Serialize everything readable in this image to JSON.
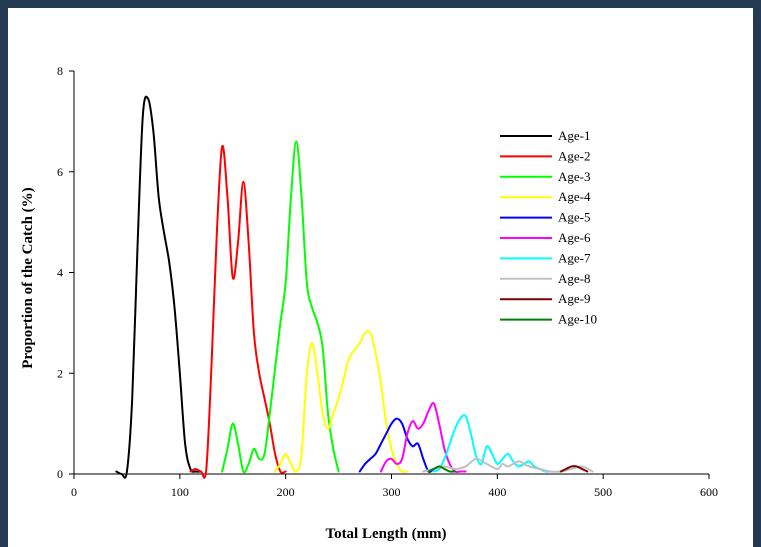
{
  "chart_data": {
    "type": "line",
    "title": "",
    "xlabel": "Total Length (mm)",
    "ylabel": "Proportion of the Catch (%)",
    "xlim": [
      0,
      600
    ],
    "ylim": [
      0,
      8
    ],
    "xticks": [
      0,
      100,
      200,
      300,
      400,
      500,
      600
    ],
    "yticks": [
      0,
      2,
      4,
      6,
      8
    ],
    "grid": false,
    "legend_position": "right",
    "series": [
      {
        "name": "Age-1",
        "color": "#000000",
        "points": [
          [
            40,
            0.05
          ],
          [
            45,
            0
          ],
          [
            50,
            0.05
          ],
          [
            55,
            1.5
          ],
          [
            60,
            4.5
          ],
          [
            65,
            7.1
          ],
          [
            70,
            7.45
          ],
          [
            75,
            6.8
          ],
          [
            80,
            5.5
          ],
          [
            85,
            4.8
          ],
          [
            90,
            4.2
          ],
          [
            95,
            3.3
          ],
          [
            100,
            2.0
          ],
          [
            105,
            0.6
          ],
          [
            110,
            0.1
          ],
          [
            115,
            0.05
          ],
          [
            120,
            0.05
          ]
        ]
      },
      {
        "name": "Age-2",
        "color": "#ff0000",
        "points": [
          [
            110,
            0.05
          ],
          [
            115,
            0.1
          ],
          [
            120,
            0.05
          ],
          [
            125,
            0.1
          ],
          [
            130,
            2.2
          ],
          [
            135,
            4.8
          ],
          [
            140,
            6.5
          ],
          [
            145,
            5.5
          ],
          [
            150,
            3.9
          ],
          [
            155,
            4.6
          ],
          [
            160,
            5.8
          ],
          [
            165,
            4.6
          ],
          [
            170,
            2.8
          ],
          [
            175,
            2.0
          ],
          [
            180,
            1.5
          ],
          [
            185,
            1.0
          ],
          [
            190,
            0.4
          ],
          [
            195,
            0.05
          ],
          [
            200,
            0.05
          ]
        ]
      },
      {
        "name": "Age-3",
        "color": "#00ff00",
        "points": [
          [
            140,
            0.05
          ],
          [
            145,
            0.5
          ],
          [
            150,
            1.0
          ],
          [
            155,
            0.6
          ],
          [
            160,
            0.05
          ],
          [
            165,
            0.2
          ],
          [
            170,
            0.5
          ],
          [
            175,
            0.3
          ],
          [
            180,
            0.4
          ],
          [
            185,
            1.2
          ],
          [
            190,
            2.1
          ],
          [
            195,
            3.0
          ],
          [
            200,
            3.8
          ],
          [
            205,
            5.5
          ],
          [
            210,
            6.6
          ],
          [
            215,
            5.5
          ],
          [
            220,
            3.8
          ],
          [
            225,
            3.3
          ],
          [
            230,
            3.0
          ],
          [
            235,
            2.5
          ],
          [
            240,
            1.2
          ],
          [
            245,
            0.5
          ],
          [
            250,
            0.05
          ]
        ]
      },
      {
        "name": "Age-4",
        "color": "#ffff00",
        "points": [
          [
            190,
            0.05
          ],
          [
            195,
            0.2
          ],
          [
            200,
            0.4
          ],
          [
            205,
            0.2
          ],
          [
            210,
            0.05
          ],
          [
            215,
            0.4
          ],
          [
            220,
            2.0
          ],
          [
            225,
            2.6
          ],
          [
            230,
            2.0
          ],
          [
            235,
            1.2
          ],
          [
            240,
            0.9
          ],
          [
            245,
            1.2
          ],
          [
            250,
            1.5
          ],
          [
            255,
            1.9
          ],
          [
            260,
            2.3
          ],
          [
            270,
            2.6
          ],
          [
            275,
            2.8
          ],
          [
            280,
            2.8
          ],
          [
            285,
            2.4
          ],
          [
            290,
            1.8
          ],
          [
            295,
            1.0
          ],
          [
            300,
            0.5
          ],
          [
            305,
            0.2
          ],
          [
            310,
            0.05
          ],
          [
            315,
            0.05
          ]
        ]
      },
      {
        "name": "Age-5",
        "color": "#0000ff",
        "points": [
          [
            270,
            0.05
          ],
          [
            275,
            0.2
          ],
          [
            280,
            0.3
          ],
          [
            285,
            0.4
          ],
          [
            290,
            0.6
          ],
          [
            295,
            0.8
          ],
          [
            300,
            1.0
          ],
          [
            305,
            1.1
          ],
          [
            310,
            1.0
          ],
          [
            315,
            0.7
          ],
          [
            320,
            0.55
          ],
          [
            325,
            0.6
          ],
          [
            330,
            0.3
          ],
          [
            335,
            0.05
          ],
          [
            340,
            0.1
          ],
          [
            345,
            0.15
          ]
        ]
      },
      {
        "name": "Age-6",
        "color": "#ff00ff",
        "points": [
          [
            290,
            0.05
          ],
          [
            295,
            0.25
          ],
          [
            300,
            0.3
          ],
          [
            305,
            0.2
          ],
          [
            310,
            0.3
          ],
          [
            315,
            0.8
          ],
          [
            320,
            1.05
          ],
          [
            325,
            0.9
          ],
          [
            330,
            1.0
          ],
          [
            335,
            1.25
          ],
          [
            340,
            1.4
          ],
          [
            345,
            1.0
          ],
          [
            350,
            0.5
          ],
          [
            355,
            0.2
          ],
          [
            360,
            0.05
          ],
          [
            365,
            0.05
          ],
          [
            370,
            0.05
          ]
        ]
      },
      {
        "name": "Age-7",
        "color": "#00ffff",
        "points": [
          [
            340,
            0.05
          ],
          [
            345,
            0.1
          ],
          [
            350,
            0.3
          ],
          [
            355,
            0.6
          ],
          [
            360,
            0.9
          ],
          [
            365,
            1.1
          ],
          [
            370,
            1.15
          ],
          [
            375,
            0.8
          ],
          [
            380,
            0.35
          ],
          [
            385,
            0.2
          ],
          [
            390,
            0.55
          ],
          [
            395,
            0.4
          ],
          [
            400,
            0.2
          ],
          [
            405,
            0.3
          ],
          [
            410,
            0.4
          ],
          [
            415,
            0.25
          ],
          [
            420,
            0.15
          ],
          [
            425,
            0.2
          ],
          [
            430,
            0.25
          ],
          [
            435,
            0.15
          ],
          [
            440,
            0.1
          ],
          [
            445,
            0.05
          ],
          [
            450,
            0.05
          ]
        ]
      },
      {
        "name": "Age-8",
        "color": "#c0c0c0",
        "points": [
          [
            330,
            0.05
          ],
          [
            340,
            0.1
          ],
          [
            350,
            0.15
          ],
          [
            360,
            0.1
          ],
          [
            370,
            0.15
          ],
          [
            380,
            0.3
          ],
          [
            390,
            0.2
          ],
          [
            400,
            0.1
          ],
          [
            405,
            0.2
          ],
          [
            410,
            0.15
          ],
          [
            420,
            0.25
          ],
          [
            425,
            0.2
          ],
          [
            430,
            0.15
          ],
          [
            440,
            0.1
          ],
          [
            450,
            0.05
          ],
          [
            460,
            0.05
          ],
          [
            470,
            0.1
          ],
          [
            480,
            0.15
          ],
          [
            490,
            0.05
          ]
        ]
      },
      {
        "name": "Age-9",
        "color": "#800000",
        "points": [
          [
            460,
            0.05
          ],
          [
            465,
            0.1
          ],
          [
            470,
            0.15
          ],
          [
            475,
            0.15
          ],
          [
            480,
            0.1
          ],
          [
            485,
            0.05
          ]
        ]
      },
      {
        "name": "Age-10",
        "color": "#008000",
        "points": [
          [
            335,
            0.05
          ],
          [
            340,
            0.1
          ],
          [
            345,
            0.15
          ],
          [
            350,
            0.1
          ],
          [
            355,
            0.05
          ],
          [
            360,
            0.05
          ]
        ]
      }
    ]
  }
}
